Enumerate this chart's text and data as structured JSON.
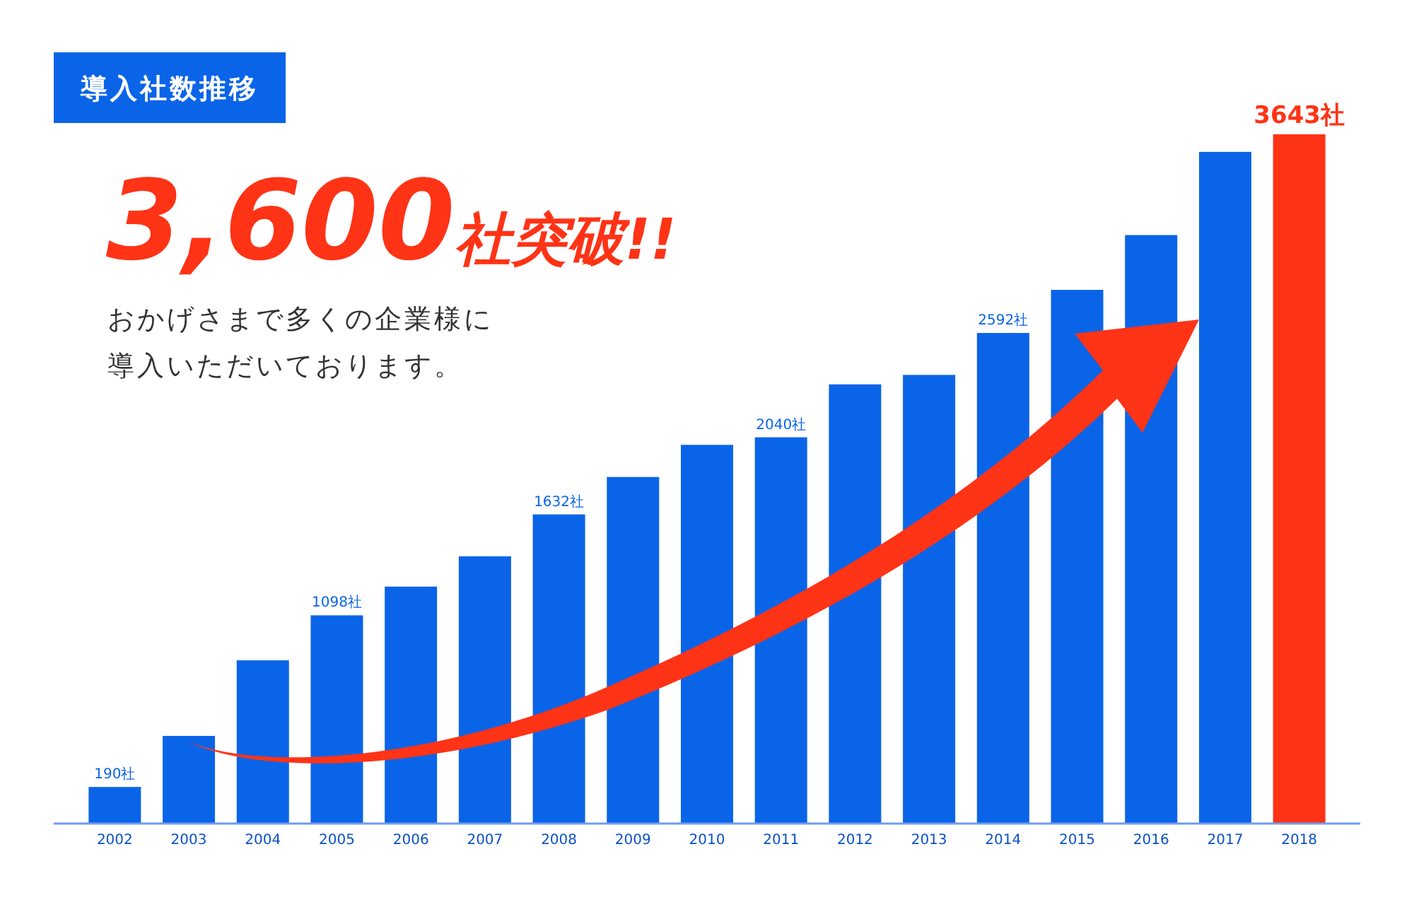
{
  "chart_data": {
    "type": "bar",
    "title": "導入社数推移",
    "annotations": [
      "3,600社突破!!",
      "おかげさまで多くの企業様に",
      "導入いただいております。"
    ],
    "categories": [
      "2002",
      "2003",
      "2004",
      "2005",
      "2006",
      "2007",
      "2008",
      "2009",
      "2010",
      "2011",
      "2012",
      "2013",
      "2014",
      "2015",
      "2016",
      "2017",
      "2018"
    ],
    "values": [
      190,
      460,
      860,
      1098,
      1250,
      1410,
      1632,
      1830,
      2000,
      2040,
      2320,
      2370,
      2592,
      2820,
      3110,
      3550,
      3643
    ],
    "colors": [
      "#0a64e8",
      "#0a64e8",
      "#0a64e8",
      "#0a64e8",
      "#0a64e8",
      "#0a64e8",
      "#0a64e8",
      "#0a64e8",
      "#0a64e8",
      "#0a64e8",
      "#0a64e8",
      "#0a64e8",
      "#0a64e8",
      "#0a64e8",
      "#0a64e8",
      "#0a64e8",
      "#ff3316"
    ],
    "value_labels": [
      "190社",
      null,
      null,
      "1098社",
      null,
      null,
      "1632社",
      null,
      null,
      "2040社",
      null,
      null,
      "2592社",
      null,
      null,
      null,
      "3643社"
    ]
  }
}
